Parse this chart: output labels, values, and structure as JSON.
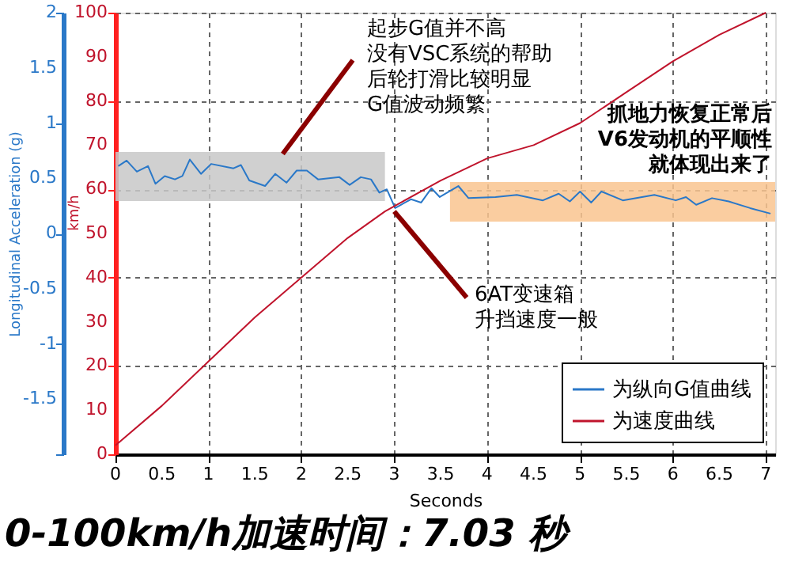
{
  "chart_data": {
    "type": "line",
    "xlabel": "Seconds",
    "ylabel": "Longitudinal Acceleration (g)",
    "y2label": "km/h",
    "xlim": [
      0,
      7.1
    ],
    "xticks": [
      0,
      0.5,
      1,
      1.5,
      2,
      2.5,
      3,
      3.5,
      4,
      4.5,
      5,
      5.5,
      6,
      6.5,
      7
    ],
    "ylim": [
      -2,
      2
    ],
    "yticks": [
      {
        "value": -2,
        "label": null
      },
      -1.5,
      -1,
      -0.5,
      0,
      0.5,
      1,
      1.5,
      2
    ],
    "y2lim": [
      0,
      100
    ],
    "y2ticks": [
      0,
      10,
      20,
      30,
      40,
      50,
      60,
      70,
      80,
      90,
      100
    ],
    "grid": true,
    "legend": "bottom right",
    "line_style": "solid",
    "marker": "none",
    "series": [
      {
        "name": "为纵向G值曲线",
        "color": "#2a78c8",
        "axis": "y",
        "x": [
          0.03,
          0.12,
          0.23,
          0.35,
          0.43,
          0.53,
          0.64,
          0.72,
          0.8,
          0.92,
          1.03,
          1.27,
          1.35,
          1.44,
          1.61,
          1.72,
          1.84,
          1.95,
          2.06,
          2.18,
          2.41,
          2.52,
          2.64,
          2.75,
          2.84,
          2.92,
          3.01,
          3.18,
          3.29,
          3.4,
          3.49,
          3.69,
          3.8,
          4.09,
          4.32,
          4.6,
          4.77,
          4.89,
          5.0,
          5.12,
          5.23,
          5.46,
          5.8,
          6.03,
          6.14,
          6.25,
          6.42,
          6.6,
          6.83,
          7.05
        ],
        "values": [
          0.61,
          0.66,
          0.56,
          0.61,
          0.45,
          0.52,
          0.49,
          0.52,
          0.67,
          0.54,
          0.63,
          0.59,
          0.62,
          0.48,
          0.43,
          0.54,
          0.46,
          0.57,
          0.57,
          0.49,
          0.51,
          0.44,
          0.51,
          0.49,
          0.37,
          0.4,
          0.23,
          0.31,
          0.28,
          0.41,
          0.33,
          0.43,
          0.32,
          0.33,
          0.35,
          0.3,
          0.36,
          0.29,
          0.38,
          0.28,
          0.38,
          0.3,
          0.35,
          0.3,
          0.33,
          0.26,
          0.32,
          0.29,
          0.23,
          0.18
        ]
      },
      {
        "name": "为速度曲线",
        "color": "#c0142c",
        "axis": "y2",
        "x": [
          0,
          0.5,
          1,
          1.5,
          2,
          2.5,
          2.9,
          3.5,
          4,
          4.5,
          5,
          5.5,
          6,
          6.5,
          7
        ],
        "values": [
          2,
          11,
          21,
          31,
          40,
          49,
          55,
          62,
          67,
          70,
          75,
          82,
          89,
          95,
          100
        ]
      }
    ],
    "bands": [
      {
        "axis": "x",
        "from": 0,
        "to": 2.9,
        "color": "#c8c8c8"
      },
      {
        "axis": "x",
        "from": 3.6,
        "to": 7.1,
        "color": "#f9c48f"
      }
    ],
    "annotations": [
      {
        "text": "起步G值并不高没有VSC系统的帮助后轮打滑比较明显G值波动频繁",
        "x": 1.8,
        "y": 0.72
      },
      {
        "text": "6AT变速箱升挡速度一般",
        "x": 3.0,
        "y": 0.2
      },
      "抓地力恢复正常后V6发动机的平顺性就体现出来了",
      "0-100km/h加速时间：7.03 秒"
    ]
  }
}
